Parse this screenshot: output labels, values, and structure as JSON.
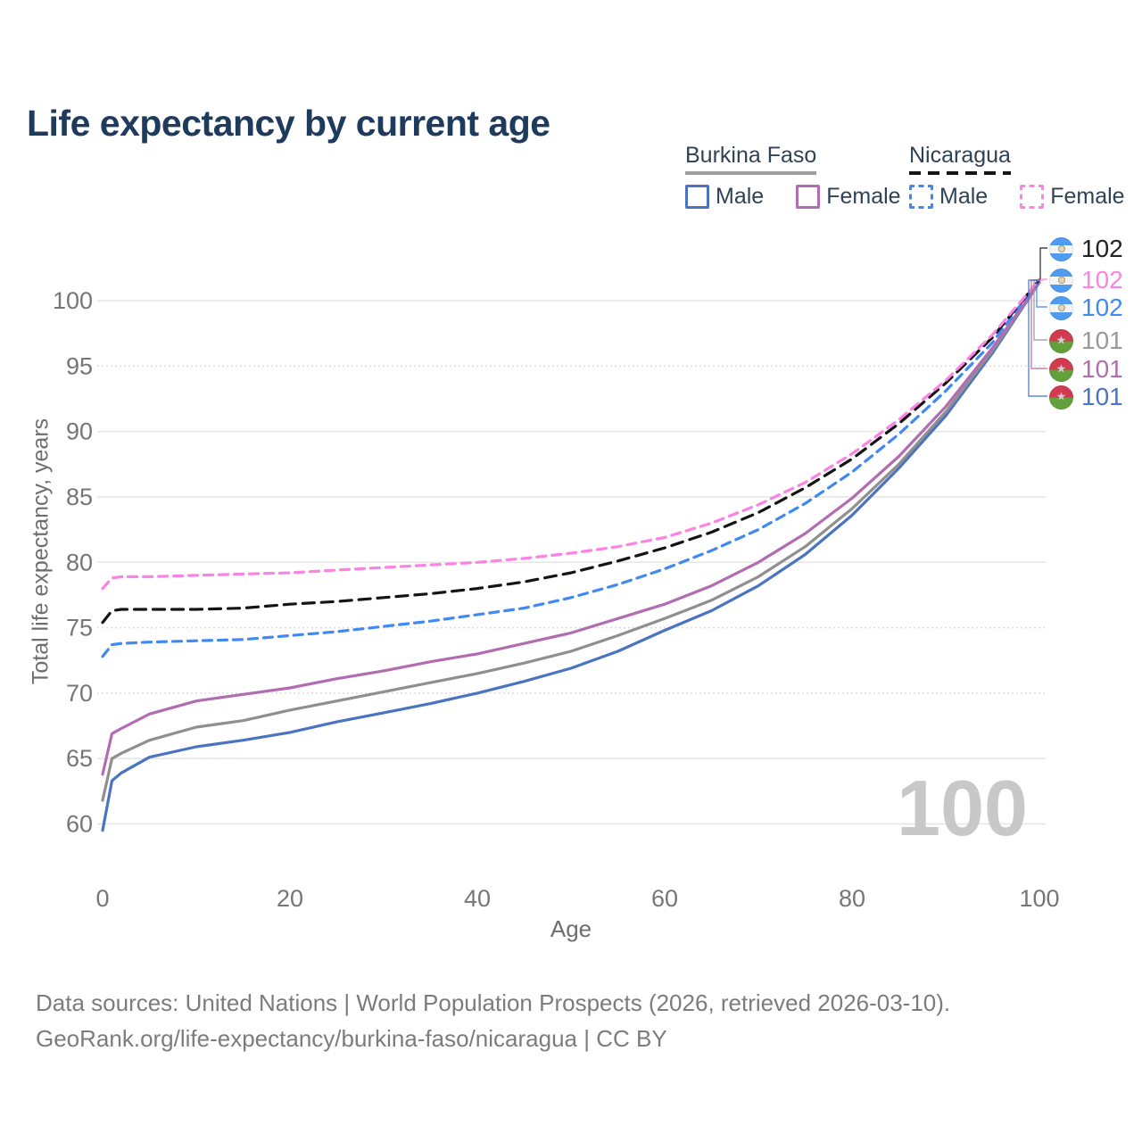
{
  "title": "Life expectancy by current age",
  "legend": {
    "groups": [
      {
        "country": "Burkina Faso",
        "line_style": "solid",
        "underline_color": "#9e9e9e",
        "items": [
          {
            "label": "Male",
            "color": "#4a74c2"
          },
          {
            "label": "Female",
            "color": "#b26cb2"
          }
        ]
      },
      {
        "country": "Nicaragua",
        "line_style": "dashed",
        "underline_color": "#141414",
        "items": [
          {
            "label": "Male",
            "color": "#4189f2"
          },
          {
            "label": "Female",
            "color": "#fb83e2"
          }
        ]
      }
    ]
  },
  "axes": {
    "x": {
      "label": "Age",
      "ticks": [
        0,
        20,
        40,
        60,
        80,
        100
      ]
    },
    "y": {
      "label": "Total life expectancy, years",
      "ticks": [
        60,
        65,
        70,
        75,
        80,
        85,
        90,
        95,
        100
      ],
      "dotted_ticks": [
        95,
        75,
        70
      ]
    }
  },
  "chart_data": {
    "type": "line",
    "title": "Life expectancy by current age",
    "xlabel": "Age",
    "ylabel": "Total life expectancy, years",
    "xlim": [
      0,
      100
    ],
    "ylim": [
      58,
      103
    ],
    "grid": "horizontal",
    "legend_position": "top-right",
    "x": [
      0,
      1,
      2,
      5,
      10,
      15,
      20,
      25,
      30,
      35,
      40,
      45,
      50,
      55,
      60,
      65,
      70,
      75,
      80,
      85,
      90,
      95,
      100
    ],
    "series": [
      {
        "name": "Burkina Faso Male",
        "country": "Burkina Faso",
        "group": "Male",
        "color": "#4a74c2",
        "dash": "solid",
        "values": [
          59.5,
          63.3,
          63.9,
          65.1,
          65.9,
          66.4,
          67.0,
          67.8,
          68.5,
          69.2,
          70.0,
          70.9,
          71.9,
          73.2,
          74.8,
          76.3,
          78.2,
          80.6,
          83.6,
          87.2,
          91.2,
          96.0,
          101.4
        ]
      },
      {
        "name": "Burkina Faso All",
        "country": "Burkina Faso",
        "group": "All",
        "color": "#8f8f8f",
        "dash": "solid",
        "values": [
          61.8,
          65.0,
          65.4,
          66.4,
          67.4,
          67.9,
          68.7,
          69.4,
          70.1,
          70.8,
          71.5,
          72.3,
          73.2,
          74.4,
          75.7,
          77.1,
          78.9,
          81.2,
          84.1,
          87.5,
          91.5,
          96.2,
          101.4
        ]
      },
      {
        "name": "Burkina Faso Female",
        "country": "Burkina Faso",
        "group": "Female",
        "color": "#b26cb2",
        "dash": "solid",
        "values": [
          63.8,
          66.9,
          67.3,
          68.4,
          69.4,
          69.9,
          70.4,
          71.1,
          71.7,
          72.4,
          73.0,
          73.8,
          74.6,
          75.7,
          76.8,
          78.2,
          80.0,
          82.2,
          84.9,
          88.1,
          91.9,
          96.4,
          101.4
        ]
      },
      {
        "name": "Nicaragua Male",
        "country": "Nicaragua",
        "group": "Male",
        "color": "#4189f2",
        "dash": "dashed",
        "values": [
          72.8,
          73.7,
          73.8,
          73.9,
          74.0,
          74.1,
          74.4,
          74.7,
          75.1,
          75.5,
          76.0,
          76.5,
          77.3,
          78.3,
          79.5,
          80.9,
          82.5,
          84.5,
          86.9,
          89.8,
          93.1,
          96.8,
          101.6
        ]
      },
      {
        "name": "Nicaragua All",
        "country": "Nicaragua",
        "group": "All",
        "color": "#141414",
        "dash": "dashed",
        "values": [
          75.4,
          76.3,
          76.4,
          76.4,
          76.4,
          76.5,
          76.8,
          77.0,
          77.3,
          77.6,
          78.0,
          78.5,
          79.2,
          80.1,
          81.1,
          82.3,
          83.8,
          85.7,
          87.9,
          90.6,
          93.7,
          97.2,
          101.6
        ]
      },
      {
        "name": "Nicaragua Female",
        "country": "Nicaragua",
        "group": "Female",
        "color": "#fb83e2",
        "dash": "dashed",
        "values": [
          78.0,
          78.8,
          78.9,
          78.9,
          79.0,
          79.1,
          79.2,
          79.4,
          79.6,
          79.8,
          80.0,
          80.3,
          80.7,
          81.2,
          81.9,
          83.0,
          84.4,
          86.1,
          88.3,
          90.9,
          93.9,
          97.4,
          101.6
        ]
      }
    ]
  },
  "end_labels": [
    {
      "flag": "nicaragua",
      "series": "Nicaragua All",
      "value": "102",
      "color": "#222222"
    },
    {
      "flag": "nicaragua",
      "series": "Nicaragua Female",
      "value": "102",
      "color": "#fb83e2"
    },
    {
      "flag": "nicaragua",
      "series": "Nicaragua Male",
      "value": "102",
      "color": "#4189f2"
    },
    {
      "flag": "burkina-faso",
      "series": "Burkina Faso All",
      "value": "101",
      "color": "#999999"
    },
    {
      "flag": "burkina-faso",
      "series": "Burkina Faso Female",
      "value": "101",
      "color": "#b26cb2"
    },
    {
      "flag": "burkina-faso",
      "series": "Burkina Faso Male",
      "value": "101",
      "color": "#4a74c2"
    }
  ],
  "watermark_age": "100",
  "footer": {
    "line1": "Data sources: United Nations | World Population Prospects (2026, retrieved 2026-03-10).",
    "line2": "GeoRank.org/life-expectancy/burkina-faso/nicaragua | CC BY"
  }
}
